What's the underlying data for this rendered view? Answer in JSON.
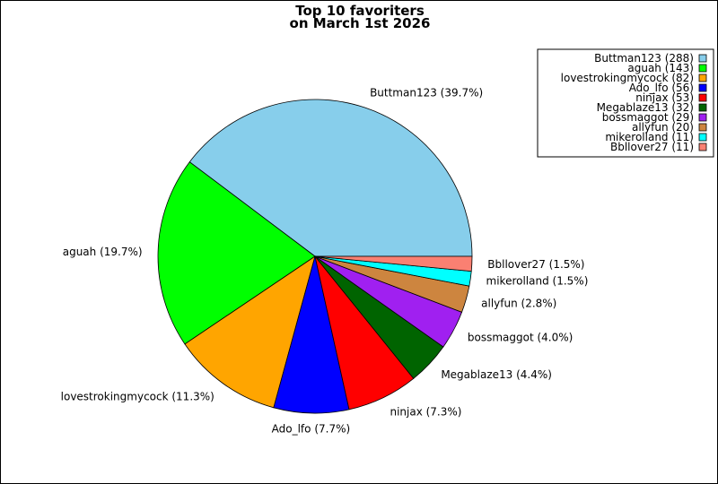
{
  "chart_data": {
    "type": "pie",
    "title": [
      "Top 10 favoriters",
      "on March 1st 2026"
    ],
    "start_angle_deg": 0,
    "direction": "counterclockwise",
    "legend_position": "top-right",
    "slices": [
      {
        "name": "Buttman123",
        "value": 288,
        "percent": "39.7%",
        "color": "#87CEEB"
      },
      {
        "name": "aguah",
        "value": 143,
        "percent": "19.7%",
        "color": "#00FF00"
      },
      {
        "name": "lovestrokingmycock",
        "value": 82,
        "percent": "11.3%",
        "color": "#FFA500"
      },
      {
        "name": "Ado_lfo",
        "value": 56,
        "percent": "7.7%",
        "color": "#0000FF"
      },
      {
        "name": "ninjax",
        "value": 53,
        "percent": "7.3%",
        "color": "#FF0000"
      },
      {
        "name": "Megablaze13",
        "value": 32,
        "percent": "4.4%",
        "color": "#006400"
      },
      {
        "name": "bossmaggot",
        "value": 29,
        "percent": "4.0%",
        "color": "#A020F0"
      },
      {
        "name": "allyfun",
        "value": 20,
        "percent": "2.8%",
        "color": "#CD853F"
      },
      {
        "name": "mikerolland",
        "value": 11,
        "percent": "1.5%",
        "color": "#00FFFF"
      },
      {
        "name": "Bbllover27",
        "value": 11,
        "percent": "1.5%",
        "color": "#FA8072"
      }
    ]
  }
}
